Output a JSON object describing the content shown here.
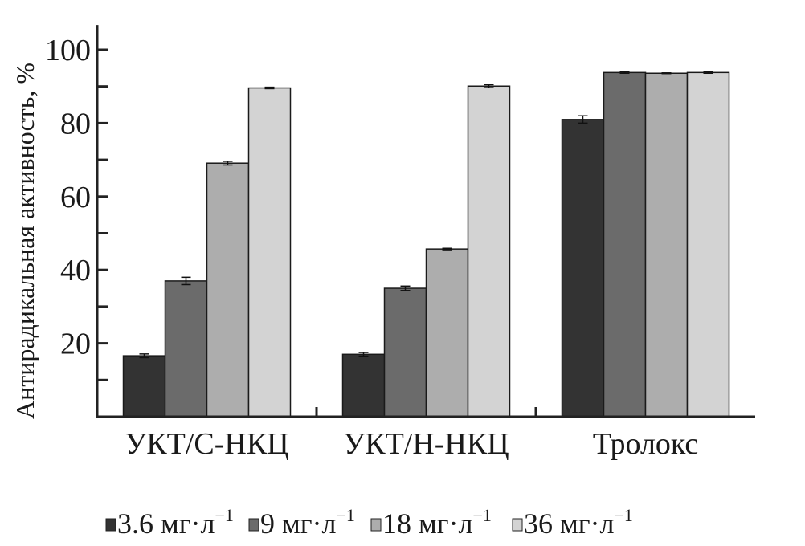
{
  "chart_data": {
    "type": "bar",
    "title": "",
    "xlabel": "",
    "ylabel": "Антирадикальная активность, %",
    "ylim": [
      0,
      105
    ],
    "yticks": [
      20,
      40,
      60,
      80,
      100
    ],
    "categories": [
      "УКТ/С-НКЦ",
      "УКТ/Н-НКЦ",
      "Тролокс"
    ],
    "legend_position": "bottom",
    "legend_unit": "мг·л",
    "legend_exp": "−1",
    "series": [
      {
        "name": "3.6",
        "color": "#333333",
        "values": [
          16.6,
          17.0,
          81.0
        ],
        "errors": [
          0.5,
          0.5,
          1.0
        ]
      },
      {
        "name": "9",
        "color": "#6b6b6b",
        "values": [
          37.0,
          35.0,
          93.8
        ],
        "errors": [
          1.0,
          0.6,
          0.2
        ]
      },
      {
        "name": "18",
        "color": "#adadad",
        "values": [
          69.1,
          45.7,
          93.6
        ],
        "errors": [
          0.5,
          0.2,
          0.1
        ]
      },
      {
        "name": "36",
        "color": "#d3d3d3",
        "values": [
          89.6,
          90.1,
          93.8
        ],
        "errors": [
          0.2,
          0.4,
          0.2
        ]
      }
    ]
  }
}
